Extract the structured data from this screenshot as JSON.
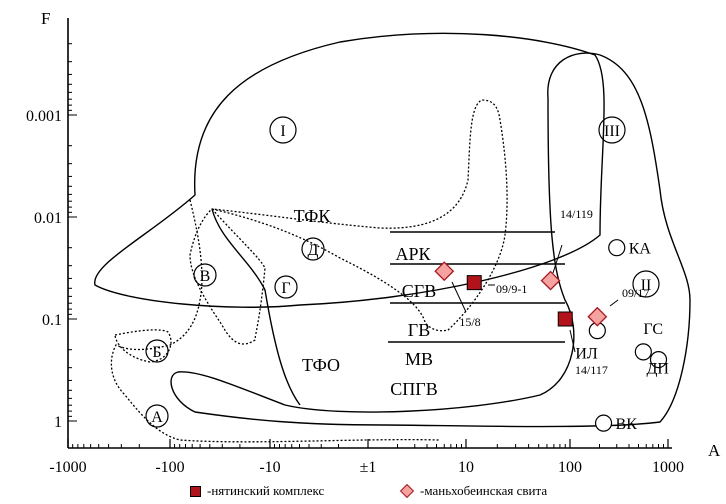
{
  "chart_data": {
    "type": "scatter",
    "title": "",
    "xlabel": "A",
    "ylabel": "F",
    "x_scale": "log-symmetric",
    "y_scale": "log-inverted",
    "xlim": [
      -1000,
      1000
    ],
    "ylim": [
      1.8,
      0.0002
    ],
    "x_ticks": [
      {
        "v": -1000,
        "label": "-1000"
      },
      {
        "v": -100,
        "label": "-100"
      },
      {
        "v": -10,
        "label": "-10"
      },
      {
        "v": 1,
        "label": "±1"
      },
      {
        "v": 10,
        "label": "10"
      },
      {
        "v": 100,
        "label": "100"
      },
      {
        "v": 1000,
        "label": "1000"
      }
    ],
    "y_ticks": [
      {
        "v": 0.001,
        "label": "0.001"
      },
      {
        "v": 0.01,
        "label": "0.01"
      },
      {
        "v": 0.1,
        "label": "0.1"
      },
      {
        "v": 1,
        "label": "1"
      }
    ],
    "series": [
      {
        "name": "-нятинский комплекс",
        "marker": "square",
        "color": "#b3121b",
        "points": [
          {
            "x": 12,
            "y": 0.044,
            "label": "09/9-1"
          },
          {
            "x": 90,
            "y": 0.1,
            "label": "14/117"
          }
        ]
      },
      {
        "name": "-маньхобеинская свита",
        "marker": "diamond",
        "color": "#f4a3a0",
        "points": [
          {
            "x": 6,
            "y": 0.034,
            "label": "15/8"
          },
          {
            "x": 65,
            "y": 0.042,
            "label": "14/119"
          },
          {
            "x": 190,
            "y": 0.095,
            "label": "09/17"
          }
        ]
      }
    ],
    "reference_points": [
      {
        "x": 300,
        "y": 0.02,
        "label": "КА"
      },
      {
        "x": 190,
        "y": 0.13,
        "label": "ИЛ"
      },
      {
        "x": 560,
        "y": 0.21,
        "label": "ГС"
      },
      {
        "x": 800,
        "y": 0.25,
        "label": "ДП"
      },
      {
        "x": 220,
        "y": 1.05,
        "label": "ВК"
      }
    ],
    "region_labels": {
      "circled": [
        "I",
        "III",
        "II",
        "В",
        "Д",
        "Г",
        "Б",
        "А"
      ],
      "plain": [
        "ТФК",
        "АРК",
        "СГВ",
        "ГВ",
        "МВ",
        "ТФО",
        "СПГВ"
      ]
    }
  },
  "colors": {
    "square_fill": "#b3121b",
    "diamond_fill": "#f4a3a0",
    "diamond_stroke": "#b3121b"
  }
}
